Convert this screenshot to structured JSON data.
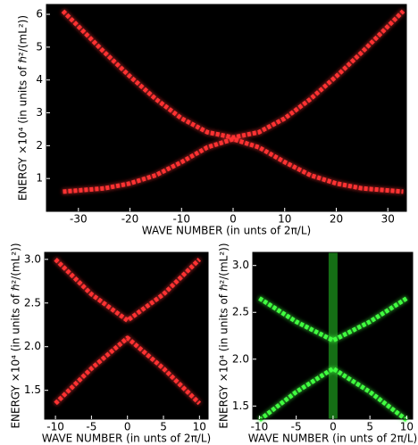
{
  "chart_data": [
    {
      "type": "line",
      "xlabel": "WAVE NUMBER (in unts of 2π/L)",
      "ylabel": "ENERGY ×10⁴ (in units of ℏ²/(mL²))",
      "background": "#000000",
      "x": [
        -33,
        -25,
        -20,
        -15,
        -10,
        -5,
        0,
        5,
        10,
        15,
        20,
        25,
        33
      ],
      "series": [
        {
          "color": "#ff3030",
          "values": [
            6.1,
            4.85,
            4.11,
            3.42,
            2.83,
            2.41,
            2.25,
            2.41,
            2.83,
            3.42,
            4.11,
            4.85,
            6.1
          ]
        },
        {
          "color": "#ff3030",
          "values": [
            0.6,
            0.7,
            0.85,
            1.1,
            1.5,
            1.95,
            2.2,
            1.95,
            1.5,
            1.1,
            0.85,
            0.7,
            0.6
          ]
        }
      ],
      "xlim": [
        -36.2,
        33.6
      ],
      "ylim": [
        0,
        6.3
      ],
      "xticks": [
        -30,
        -20,
        -10,
        0,
        10,
        20,
        30
      ],
      "yticks": [
        1,
        2,
        3,
        4,
        5,
        6
      ]
    },
    {
      "type": "line",
      "xlabel": "WAVE NUMBER (in unts of 2π/L)",
      "ylabel": "ENERGY ×10⁴ (in units of ℏ²/(mL²))",
      "background": "#000000",
      "x": [
        -10,
        -5,
        0,
        5,
        10
      ],
      "series": [
        {
          "color": "#ff3030",
          "values": [
            3.0,
            2.6,
            2.3,
            2.6,
            3.0
          ]
        },
        {
          "color": "#ff3030",
          "values": [
            1.35,
            1.75,
            2.1,
            1.75,
            1.35
          ]
        }
      ],
      "xlim": [
        -11.5,
        11.2
      ],
      "ylim": [
        1.17,
        3.08
      ],
      "xticks": [
        -10,
        -5,
        0,
        5,
        10
      ],
      "yticks": [
        1.5,
        {
          "value": 2,
          "label": "2.0"
        },
        2.5,
        {
          "value": 3,
          "label": "3.0"
        }
      ]
    },
    {
      "type": "line",
      "xlabel": "WAVE NUMBER (in unts of 2π/L)",
      "ylabel": "ENERGY ×10⁴ (in units of ℏ²/(mL²))",
      "background": "#000000",
      "x": [
        -10,
        -5,
        0,
        5,
        10
      ],
      "series": [
        {
          "color": "#40ff40",
          "values": [
            2.65,
            2.4,
            2.2,
            2.4,
            2.65
          ]
        },
        {
          "color": "#40ff40",
          "values": [
            1.35,
            1.65,
            1.9,
            1.65,
            1.35
          ]
        }
      ],
      "xlim": [
        -10.9,
        10.8
      ],
      "ylim": [
        1.36,
        3.14
      ],
      "xticks": [
        -10,
        -5,
        0,
        5,
        10
      ],
      "yticks": [
        1.5,
        {
          "value": 2,
          "label": "2.0"
        },
        2.5,
        {
          "value": 3,
          "label": "3.0"
        }
      ]
    }
  ]
}
